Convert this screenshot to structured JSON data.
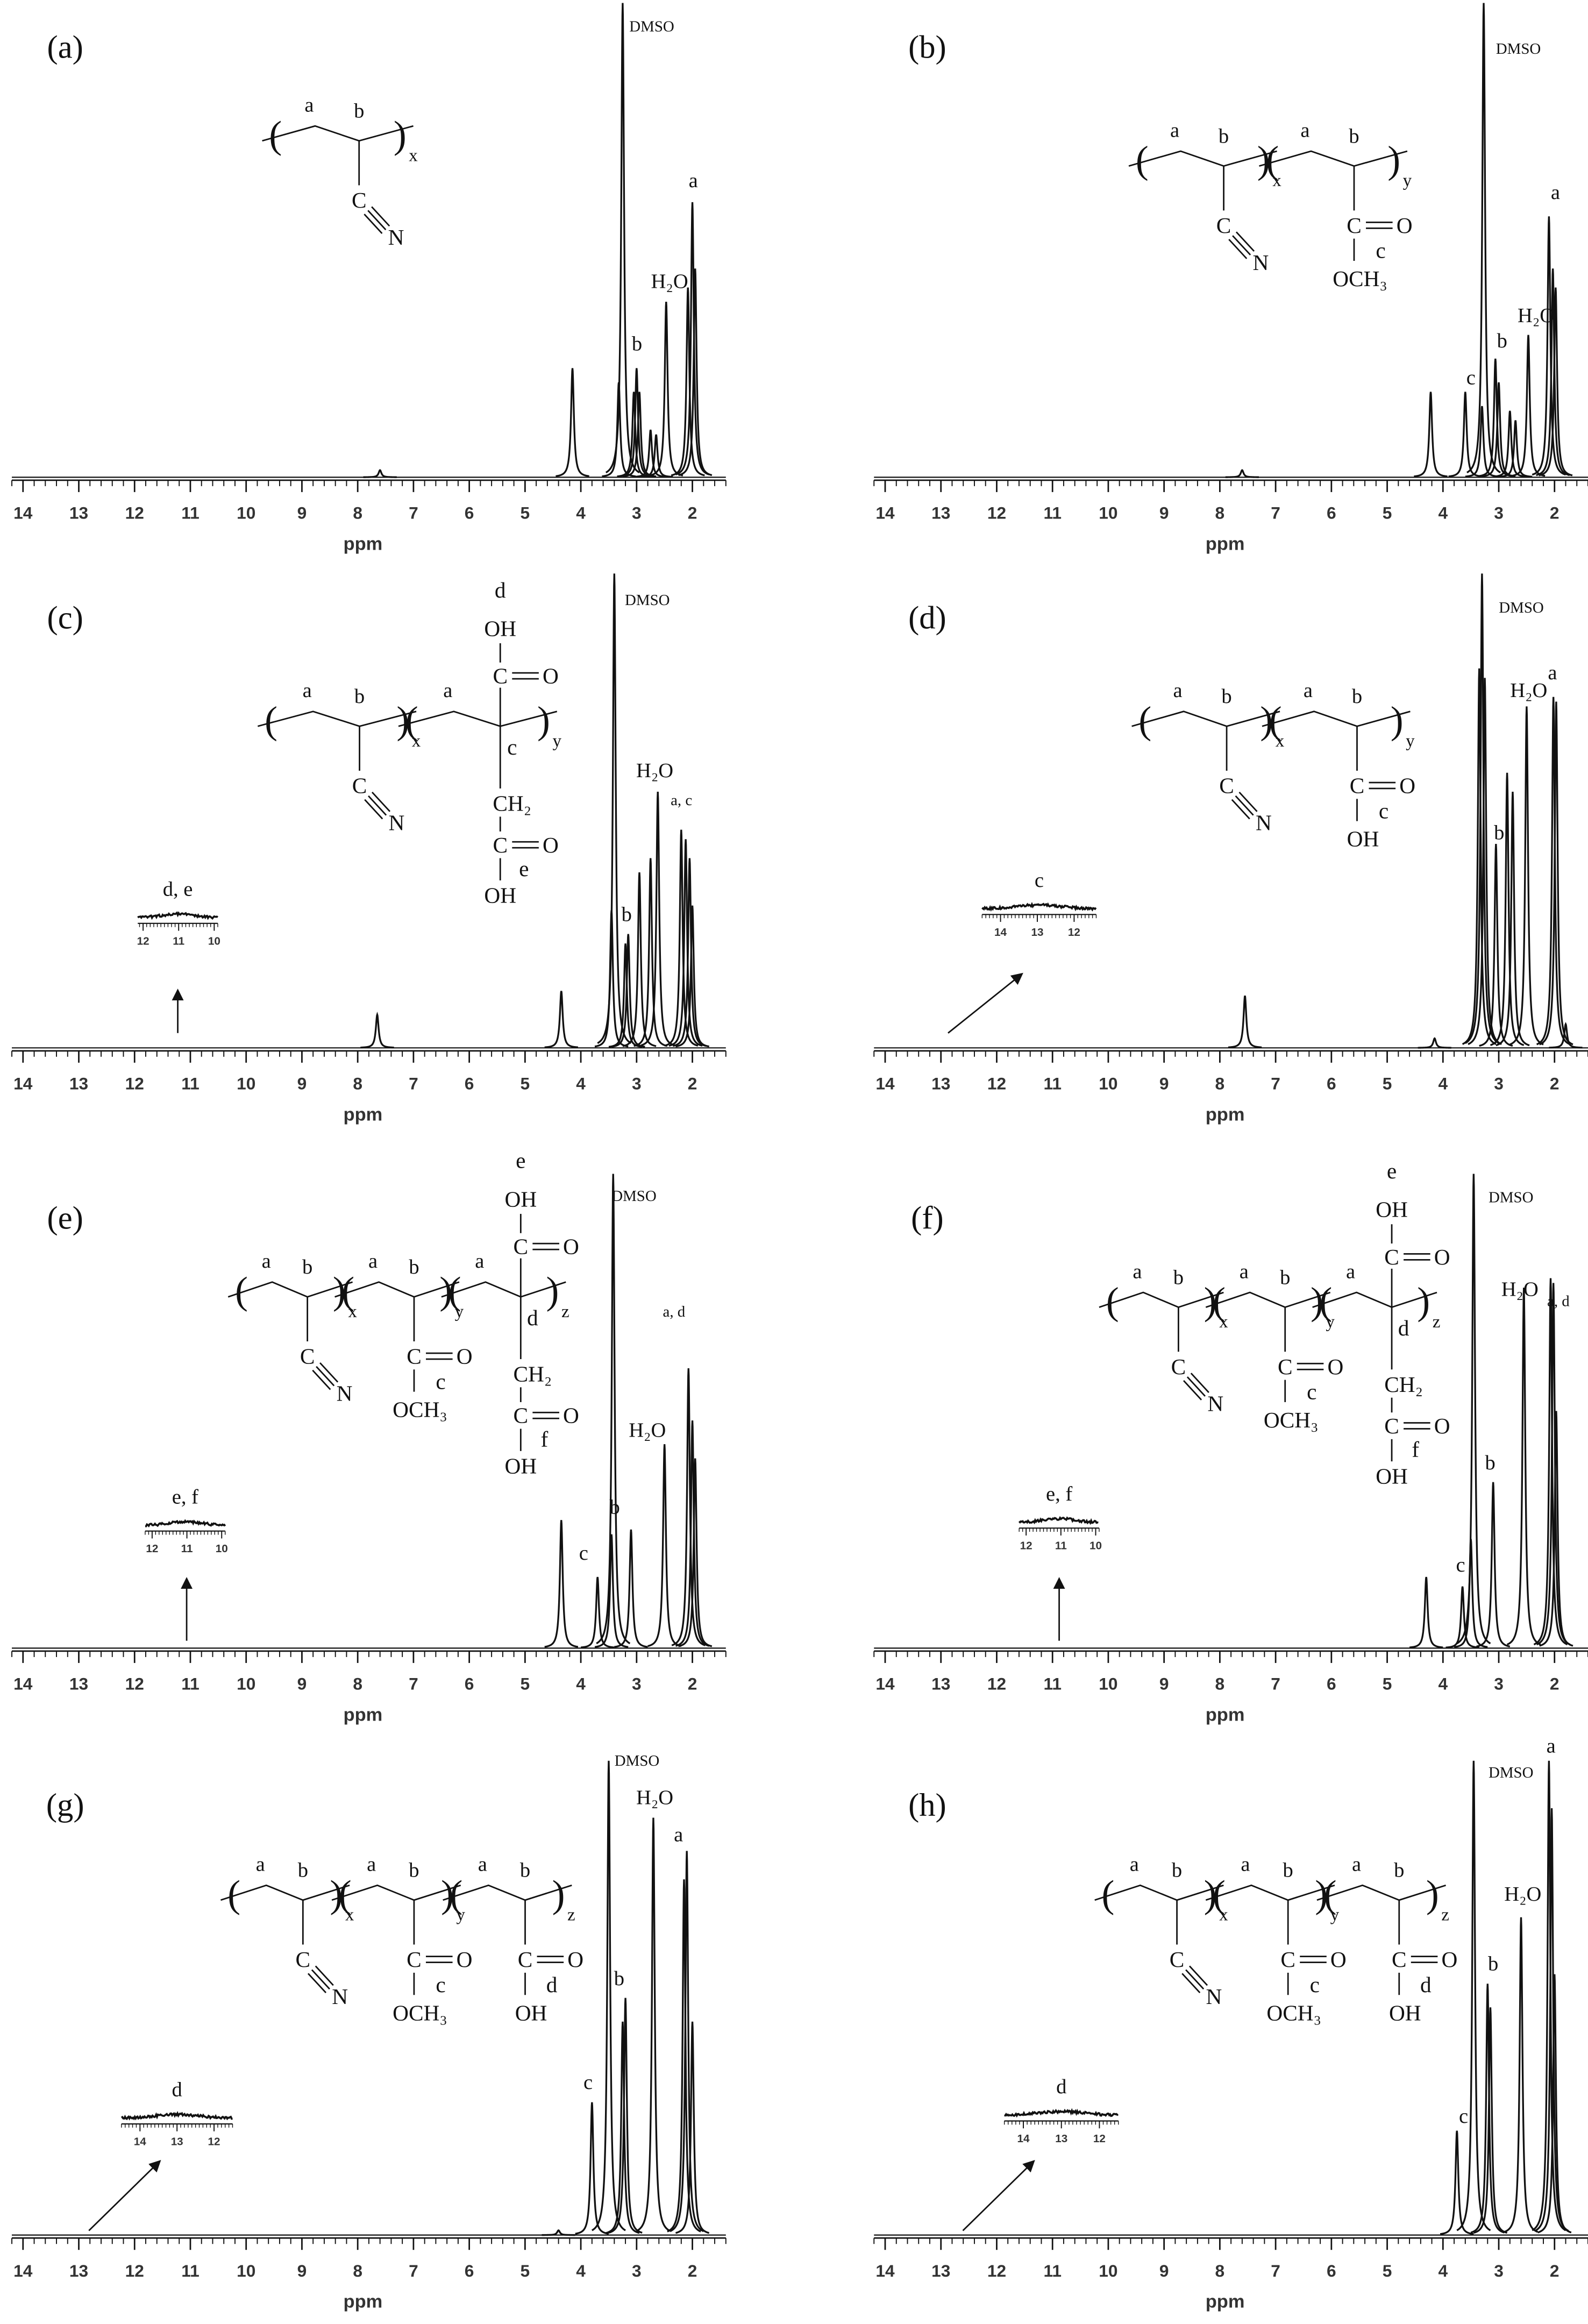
{
  "chart_data": [
    {
      "type": "spectrum",
      "title": "(a)",
      "xlabel": "ppm",
      "xlim": [
        14.2,
        1.4
      ],
      "ylim": [
        0,
        100
      ],
      "xticks": [
        14,
        13,
        12,
        11,
        10,
        9,
        8,
        7,
        6,
        5,
        4,
        3,
        2
      ],
      "x": [
        7.6,
        4.15,
        3.32,
        3.25,
        3.05,
        3.0,
        2.95,
        2.75,
        2.65,
        2.47,
        2.08,
        2.0,
        1.95
      ],
      "values": [
        1.5,
        23,
        20,
        100,
        18,
        23,
        18,
        10,
        9,
        37,
        40,
        58,
        44
      ],
      "annotations": [
        "DMSO",
        "b",
        "H₂O",
        "a"
      ],
      "structure": [
        {
          "labels": [
            "a",
            "b"
          ],
          "sub": "x",
          "group": [
            "C",
            "N"
          ]
        }
      ]
    },
    {
      "type": "spectrum",
      "title": "(b)",
      "xlabel": "ppm",
      "xlim": [
        14.2,
        1.4
      ],
      "ylim": [
        0,
        100
      ],
      "xticks": [
        14,
        13,
        12,
        11,
        10,
        9,
        8,
        7,
        6,
        5,
        4,
        3,
        2
      ],
      "x": [
        7.6,
        4.22,
        3.6,
        3.3,
        3.27,
        3.06,
        3.0,
        2.8,
        2.7,
        2.47,
        2.1,
        2.03,
        1.98
      ],
      "values": [
        1.5,
        18,
        18,
        15,
        100,
        25,
        20,
        14,
        12,
        30,
        55,
        44,
        40
      ],
      "annotations": [
        "DMSO",
        "c",
        "b",
        "H₂O",
        "a"
      ],
      "structure": [
        {
          "labels": [
            "a",
            "b"
          ],
          "sub": "x",
          "group": [
            "C",
            "N"
          ]
        },
        {
          "labels": [
            "a",
            "b"
          ],
          "sub": "y",
          "group": [
            "C",
            "O",
            "c",
            "OCH₃"
          ]
        }
      ]
    },
    {
      "type": "spectrum",
      "title": "(c)",
      "xlabel": "ppm",
      "xlim": [
        14.2,
        1.4
      ],
      "ylim": [
        0,
        100
      ],
      "xticks": [
        14,
        13,
        12,
        11,
        10,
        9,
        8,
        7,
        6,
        5,
        4,
        3,
        2
      ],
      "x": [
        7.65,
        4.35,
        3.45,
        3.4,
        3.2,
        3.15,
        2.95,
        2.75,
        2.62,
        2.2,
        2.12,
        2.05,
        2.0
      ],
      "values": [
        7,
        12,
        29,
        100,
        22,
        24,
        37,
        40,
        54,
        46,
        44,
        40,
        30
      ],
      "annotations": [
        "DMSO",
        "b",
        "H₂O",
        "a, c"
      ],
      "structure": [
        {
          "labels": [
            "a",
            "b"
          ],
          "sub": "x",
          "group": [
            "C",
            "N"
          ]
        },
        {
          "labels": [
            "a"
          ],
          "sub": "y",
          "group": [
            "d",
            "OH",
            "C",
            "O",
            "c",
            "CH₂",
            "C",
            "O",
            "e",
            "OH"
          ]
        }
      ],
      "inset": {
        "label": "d, e",
        "xlim": [
          12.15,
          9.9
        ],
        "xticks": [
          12,
          11,
          10
        ]
      }
    },
    {
      "type": "spectrum",
      "title": "(d)",
      "xlabel": "ppm",
      "xlim": [
        14.2,
        1.4
      ],
      "ylim": [
        0,
        100
      ],
      "xticks": [
        14,
        13,
        12,
        11,
        10,
        9,
        8,
        7,
        6,
        5,
        4,
        3,
        2
      ],
      "x": [
        7.55,
        4.15,
        3.35,
        3.3,
        3.25,
        3.05,
        2.85,
        2.75,
        2.5,
        2.02,
        1.97,
        1.8
      ],
      "values": [
        11,
        2,
        80,
        100,
        78,
        43,
        58,
        54,
        72,
        74,
        73,
        5
      ],
      "annotations": [
        "DMSO",
        "b",
        "H₂O",
        "a"
      ],
      "structure": [
        {
          "labels": [
            "a",
            "b"
          ],
          "sub": "x",
          "group": [
            "C",
            "N"
          ]
        },
        {
          "labels": [
            "a",
            "b"
          ],
          "sub": "y",
          "group": [
            "C",
            "O",
            "c",
            "OH"
          ]
        }
      ],
      "inset": {
        "label": "c",
        "xlim": [
          14.5,
          11.4
        ],
        "xticks": [
          14,
          13,
          12
        ]
      }
    },
    {
      "type": "spectrum",
      "title": "(e)",
      "xlabel": "ppm",
      "xlim": [
        14.2,
        1.4
      ],
      "ylim": [
        0,
        100
      ],
      "xticks": [
        14,
        13,
        12,
        11,
        10,
        9,
        8,
        7,
        6,
        5,
        4,
        3,
        2
      ],
      "x": [
        4.35,
        3.7,
        3.45,
        3.42,
        3.1,
        2.5,
        2.07,
        2.0,
        1.95
      ],
      "values": [
        27,
        15,
        24,
        100,
        25,
        43,
        59,
        48,
        40
      ],
      "annotations": [
        "DMSO",
        "c",
        "b",
        "H₂O",
        "a, d"
      ],
      "structure": [
        {
          "labels": [
            "a",
            "b"
          ],
          "sub": "x",
          "group": [
            "C",
            "N"
          ]
        },
        {
          "labels": [
            "a",
            "b"
          ],
          "sub": "y",
          "group": [
            "C",
            "O",
            "c",
            "OCH₃"
          ]
        },
        {
          "labels": [
            "a"
          ],
          "sub": "z",
          "group": [
            "e",
            "OH",
            "C",
            "O",
            "d",
            "CH₂",
            "C",
            "O",
            "f",
            "OH"
          ]
        }
      ],
      "inset": {
        "label": "e, f",
        "xlim": [
          12.2,
          9.9
        ],
        "xticks": [
          12,
          11,
          10
        ]
      }
    },
    {
      "type": "spectrum",
      "title": "(f)",
      "xlabel": "ppm",
      "xlim": [
        14.2,
        1.4
      ],
      "ylim": [
        0,
        100
      ],
      "xticks": [
        14,
        13,
        12,
        11,
        10,
        9,
        8,
        7,
        6,
        5,
        4,
        3,
        2
      ],
      "x": [
        4.3,
        3.65,
        3.5,
        3.45,
        3.1,
        2.55,
        2.07,
        2.02,
        1.97
      ],
      "values": [
        15,
        13,
        23,
        100,
        35,
        76,
        78,
        77,
        50
      ],
      "annotations": [
        "DMSO",
        "c",
        "b",
        "H₂O",
        "a, d"
      ],
      "structure": [
        {
          "labels": [
            "a",
            "b"
          ],
          "sub": "x",
          "group": [
            "C",
            "N"
          ]
        },
        {
          "labels": [
            "a",
            "b"
          ],
          "sub": "y",
          "group": [
            "C",
            "O",
            "c",
            "OCH₃"
          ]
        },
        {
          "labels": [
            "a"
          ],
          "sub": "z",
          "group": [
            "e",
            "OH",
            "C",
            "O",
            "d",
            "CH₂",
            "C",
            "O",
            "f",
            "OH"
          ]
        }
      ],
      "inset": {
        "label": "e, f",
        "xlim": [
          12.2,
          9.9
        ],
        "xticks": [
          12,
          11,
          10
        ]
      }
    },
    {
      "type": "spectrum",
      "title": "(g)",
      "xlabel": "ppm",
      "xlim": [
        14.2,
        1.4
      ],
      "ylim": [
        0,
        100
      ],
      "xticks": [
        14,
        13,
        12,
        11,
        10,
        9,
        8,
        7,
        6,
        5,
        4,
        3,
        2
      ],
      "x": [
        4.4,
        3.8,
        3.5,
        3.25,
        3.2,
        2.7,
        2.15,
        2.1,
        2.0
      ],
      "values": [
        1,
        28,
        100,
        45,
        50,
        88,
        75,
        81,
        45
      ],
      "annotations": [
        "DMSO",
        "H₂O",
        "a",
        "c",
        "b"
      ],
      "structure": [
        {
          "labels": [
            "a",
            "b"
          ],
          "sub": "x",
          "group": [
            "C",
            "N"
          ]
        },
        {
          "labels": [
            "a",
            "b"
          ],
          "sub": "y",
          "group": [
            "C",
            "O",
            "c",
            "OCH₃"
          ]
        },
        {
          "labels": [
            "a",
            "b"
          ],
          "sub": "z",
          "group": [
            "C",
            "O",
            "d",
            "OH"
          ]
        }
      ],
      "inset": {
        "label": "d",
        "xlim": [
          14.5,
          11.5
        ],
        "xticks": [
          14,
          13,
          12
        ]
      }
    },
    {
      "type": "spectrum",
      "title": "(h)",
      "xlabel": "ppm",
      "xlim": [
        14.2,
        1.4
      ],
      "ylim": [
        0,
        100
      ],
      "xticks": [
        14,
        13,
        12,
        11,
        10,
        9,
        8,
        7,
        6,
        5,
        4,
        3,
        2
      ],
      "x": [
        3.75,
        3.45,
        3.2,
        3.15,
        2.6,
        2.1,
        2.05,
        2.0
      ],
      "values": [
        22,
        100,
        53,
        48,
        67,
        100,
        90,
        55
      ],
      "annotations": [
        "DMSO",
        "a",
        "H₂O",
        "b",
        "c"
      ],
      "structure": [
        {
          "labels": [
            "a",
            "b"
          ],
          "sub": "x",
          "group": [
            "C",
            "N"
          ]
        },
        {
          "labels": [
            "a",
            "b"
          ],
          "sub": "y",
          "group": [
            "C",
            "O",
            "c",
            "OCH₃"
          ]
        },
        {
          "labels": [
            "a",
            "b"
          ],
          "sub": "z",
          "group": [
            "C",
            "O",
            "d",
            "OH"
          ]
        }
      ],
      "inset": {
        "label": "d",
        "xlim": [
          14.5,
          11.5
        ],
        "xticks": [
          14,
          13,
          12
        ]
      }
    }
  ]
}
